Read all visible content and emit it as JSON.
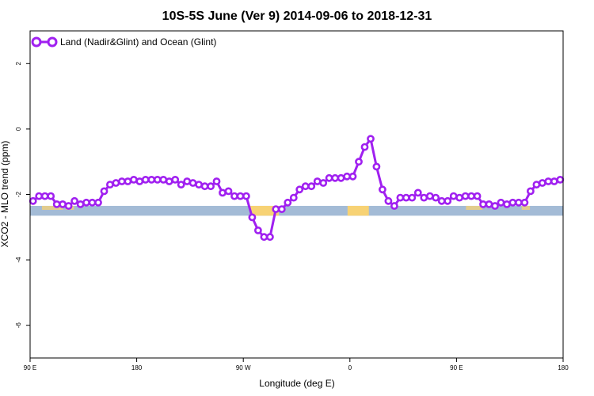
{
  "chart_data": {
    "type": "line",
    "title": "10S-5S June (Ver 9)   2014-09-06 to 2018-12-31",
    "xlabel": "Longitude (deg E)",
    "ylabel": "XCO2 - MLO trend (ppm)",
    "xticks": [
      {
        "x": 90,
        "label": "90 E"
      },
      {
        "x": 180,
        "label": "180"
      },
      {
        "x": 270,
        "label": "90 W"
      },
      {
        "x": 360,
        "label": "0"
      },
      {
        "x": 450,
        "label": "90 E"
      },
      {
        "x": 540,
        "label": "180"
      }
    ],
    "yticks": [
      {
        "y": 2,
        "label": "2"
      },
      {
        "y": 0,
        "label": "0"
      },
      {
        "y": -2,
        "label": "-2"
      },
      {
        "y": -4,
        "label": "-4"
      },
      {
        "y": -6,
        "label": "-6"
      }
    ],
    "xlim": [
      90,
      540
    ],
    "ylim": [
      -7,
      3
    ],
    "grid": false,
    "legend_position": "top-left",
    "series": [
      {
        "name": "Land (Nadir&Glint) and Ocean (Glint)",
        "color": "#a020f0",
        "x": [
          92.5,
          97.5,
          102.5,
          107.5,
          112.5,
          117.5,
          122.5,
          127.5,
          132.5,
          137.5,
          142.5,
          147.5,
          152.5,
          157.5,
          162.5,
          167.5,
          172.5,
          177.5,
          182.5,
          187.5,
          192.5,
          197.5,
          202.5,
          207.5,
          212.5,
          217.5,
          222.5,
          227.5,
          232.5,
          237.5,
          242.5,
          247.5,
          252.5,
          257.5,
          262.5,
          267.5,
          272.5,
          277.5,
          282.5,
          287.5,
          292.5,
          297.5,
          302.5,
          307.5,
          312.5,
          317.5,
          322.5,
          327.5,
          332.5,
          337.5,
          342.5,
          347.5,
          352.5,
          357.5,
          362.5,
          367.5,
          372.5,
          377.5,
          382.5,
          387.5,
          392.5,
          397.5,
          402.5,
          407.5,
          412.5,
          417.5,
          422.5,
          427.5,
          432.5,
          437.5,
          442.5,
          447.5,
          452.5,
          457.5,
          462.5,
          467.5,
          472.5,
          477.5,
          482.5,
          487.5,
          492.5,
          497.5,
          502.5,
          507.5,
          512.5,
          517.5,
          522.5,
          527.5,
          532.5,
          537.5
        ],
        "y": [
          -2.2,
          -2.05,
          -2.05,
          -2.05,
          -2.3,
          -2.3,
          -2.35,
          -2.2,
          -2.3,
          -2.25,
          -2.25,
          -2.25,
          -1.9,
          -1.7,
          -1.65,
          -1.6,
          -1.6,
          -1.55,
          -1.6,
          -1.55,
          -1.55,
          -1.55,
          -1.55,
          -1.6,
          -1.55,
          -1.7,
          -1.6,
          -1.65,
          -1.7,
          -1.75,
          -1.75,
          -1.6,
          -1.95,
          -1.9,
          -2.05,
          -2.05,
          -2.05,
          -2.7,
          -3.1,
          -3.3,
          -3.3,
          -2.45,
          -2.45,
          -2.25,
          -2.1,
          -1.85,
          -1.75,
          -1.75,
          -1.6,
          -1.65,
          -1.5,
          -1.5,
          -1.5,
          -1.45,
          -1.45,
          -1.0,
          -0.55,
          -0.3,
          -1.15,
          -1.85,
          -2.2,
          -2.35,
          -2.1,
          -2.1,
          -2.1,
          -1.95,
          -2.1,
          -2.05,
          -2.1,
          -2.2,
          -2.2,
          -2.05,
          -2.1,
          -2.05,
          -2.05,
          -2.05,
          -2.3,
          -2.3,
          -2.35,
          -2.25,
          -2.3,
          -2.25,
          -2.25,
          -2.25,
          -1.9,
          -1.7,
          -1.65,
          -1.6,
          -1.6,
          -1.55
        ]
      }
    ]
  }
}
